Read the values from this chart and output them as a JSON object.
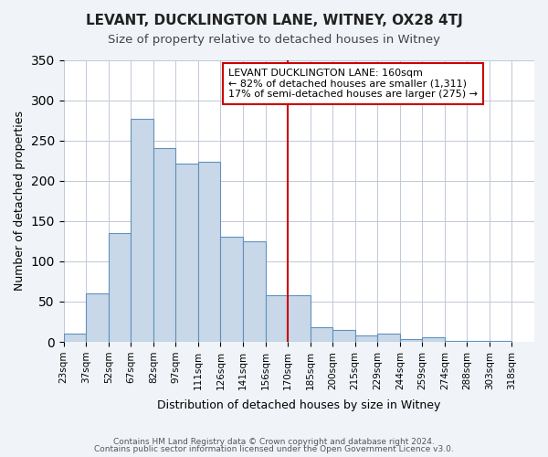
{
  "title": "LEVANT, DUCKLINGTON LANE, WITNEY, OX28 4TJ",
  "subtitle": "Size of property relative to detached houses in Witney",
  "xlabel": "Distribution of detached houses by size in Witney",
  "ylabel": "Number of detached properties",
  "bin_labels": [
    "23sqm",
    "37sqm",
    "52sqm",
    "67sqm",
    "82sqm",
    "97sqm",
    "111sqm",
    "126sqm",
    "141sqm",
    "156sqm",
    "170sqm",
    "185sqm",
    "200sqm",
    "215sqm",
    "229sqm",
    "244sqm",
    "259sqm",
    "274sqm",
    "288sqm",
    "303sqm",
    "318sqm"
  ],
  "bar_values": [
    10,
    60,
    135,
    277,
    241,
    221,
    224,
    130,
    125,
    58,
    58,
    18,
    15,
    8,
    10,
    4,
    6,
    1,
    1,
    1
  ],
  "bar_color": "#c8d8e8",
  "bar_edge_color": "#6090c0",
  "vline_x": 9.5,
  "vline_color": "#cc0000",
  "ylim": [
    0,
    350
  ],
  "yticks": [
    0,
    50,
    100,
    150,
    200,
    250,
    300,
    350
  ],
  "annotation_title": "LEVANT DUCKLINGTON LANE: 160sqm",
  "annotation_line1": "← 82% of detached houses are smaller (1,311)",
  "annotation_line2": "17% of semi-detached houses are larger (275) →",
  "annotation_box_color": "#ffffff",
  "annotation_box_edge": "#cc0000",
  "footer_line1": "Contains HM Land Registry data © Crown copyright and database right 2024.",
  "footer_line2": "Contains public sector information licensed under the Open Government Licence v3.0.",
  "background_color": "#f0f4f8",
  "plot_background": "#ffffff"
}
